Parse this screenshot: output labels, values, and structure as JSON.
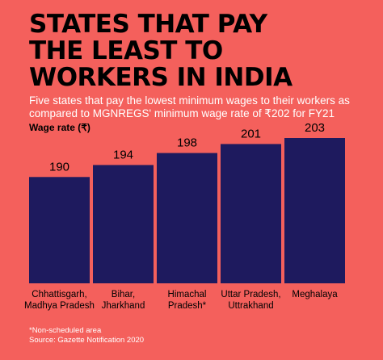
{
  "title_lines": [
    "STATES THAT PAY",
    "THE LEAST TO",
    "WORKERS IN INDIA"
  ],
  "subtitle": "Five states that pay the lowest minimum wages to their workers as compared to MGNREGS' minimum wage rate of ₹202 for FY21",
  "footnote_lines": [
    "*Non-scheduled area",
    "Source: Gazette Notification 2020"
  ],
  "colors": {
    "background": "#f4605c",
    "bar": "#1e1a5e",
    "text": "#000000",
    "accent_text": "#ffffff"
  },
  "chart_data": {
    "type": "bar",
    "ylabel": "Wage rate (₹)",
    "categories": [
      [
        "Chhattisgarh,",
        "Madhya Pradesh"
      ],
      [
        "Bihar,",
        "Jharkhand"
      ],
      [
        "Himachal",
        "Pradesh*"
      ],
      [
        "Uttar Pradesh,",
        "Uttrakhand"
      ],
      [
        "Meghalaya"
      ]
    ],
    "values": [
      190,
      194,
      198,
      201,
      203
    ],
    "grid": false,
    "legend": "none"
  }
}
